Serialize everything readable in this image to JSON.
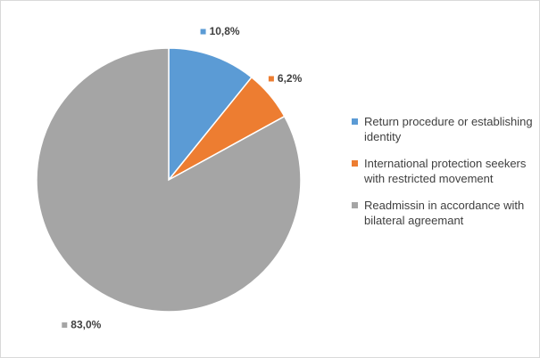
{
  "chart_data": {
    "type": "pie",
    "categories": [
      "Return procedure or establishing identity",
      "International protection seekers with restricted movement",
      "Readmissin in accordance with bilateral agreemant"
    ],
    "values": [
      10.8,
      6.2,
      83.0
    ],
    "value_labels": [
      "10,8%",
      "6,2%",
      "83,0%"
    ],
    "colors": [
      "#5b9bd5",
      "#ed7d31",
      "#a5a5a5"
    ],
    "legend": "right"
  }
}
